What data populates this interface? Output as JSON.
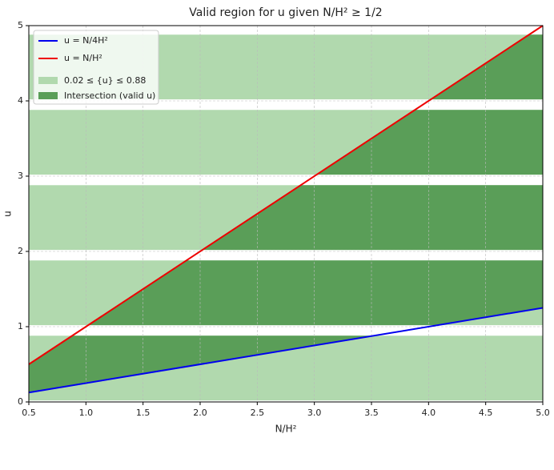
{
  "chart_data": {
    "type": "line",
    "title": "Valid region for u given N/H² ≥ 1/2",
    "xlabel": "N/H²",
    "ylabel": "u",
    "xlim": [
      0.5,
      5.0
    ],
    "ylim": [
      0,
      5
    ],
    "xticks": [
      0.5,
      {
        "value": 1,
        "label": "1.0"
      },
      1.5,
      {
        "value": 2,
        "label": "2.0"
      },
      2.5,
      {
        "value": 3,
        "label": "3.0"
      },
      3.5,
      {
        "value": 4,
        "label": "4.0"
      },
      4.5,
      {
        "value": 5,
        "label": "5.0"
      }
    ],
    "yticks": [
      0,
      1,
      2,
      3,
      4,
      5
    ],
    "grid": true,
    "legend": "upper left",
    "series": [
      {
        "name": "u = N/4H²",
        "color": "#0000ee",
        "x": [
          0.5,
          5.0
        ],
        "values": [
          0.125,
          1.25
        ]
      },
      {
        "name": "u = N/H²",
        "color": "#ee0000",
        "x": [
          0.5,
          5.0
        ],
        "values": [
          0.5,
          5.0
        ]
      }
    ],
    "band_name": "0.02 ≤ {u} ≤ 0.88",
    "band_color": "#b1d9ae",
    "bands": [
      [
        0.02,
        0.88
      ],
      [
        1.02,
        1.88
      ],
      [
        2.02,
        2.88
      ],
      [
        3.02,
        3.88
      ],
      [
        4.02,
        4.88
      ]
    ],
    "intersection_name": "Intersection (valid u)",
    "intersection_color": "#5a9e58"
  }
}
